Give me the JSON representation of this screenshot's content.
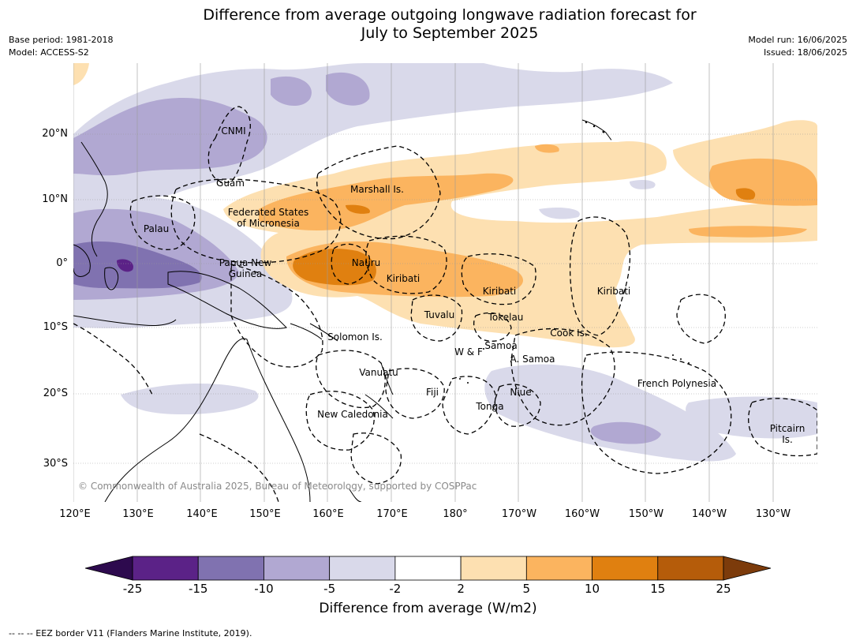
{
  "title": "Difference from average outgoing longwave radiation forecast for\nJuly to September 2025",
  "meta": {
    "base_period": "Base period: 1981-2018",
    "model": "Model: ACCESS-S2",
    "model_run": "Model run: 16/06/2025",
    "issued": "Issued: 18/06/2025"
  },
  "lat_labels": [
    "20°N",
    "10°N",
    "0°",
    "10°S",
    "20°S",
    "30°S"
  ],
  "lon_labels": [
    "120°E",
    "130°E",
    "140°E",
    "150°E",
    "160°E",
    "170°E",
    "180°",
    "170°W",
    "160°W",
    "150°W",
    "140°W",
    "130°W"
  ],
  "places": [
    "CNMI",
    "Guam",
    "Marshall Is.",
    "Federated States\nof Micronesia",
    "Palau",
    "Papua New\nGuinea",
    "Nauru",
    "Kiribati",
    "Kiribati",
    "Kiribati",
    "Tuvalu",
    "Tokelau",
    "Cook Is.",
    "Solomon Is.",
    "Samoa",
    "W & F",
    "A. Samoa",
    "Vanuatu",
    "Fiji",
    "Niue",
    "Tonga",
    "French Polynesia",
    "New Caledonia",
    "Pitcairn\nIs."
  ],
  "copyright": "© Commonwealth of Australia 2025, Bureau of Meteorology, supported by COSPPac",
  "colorbar": {
    "ticks": [
      "-25",
      "-15",
      "-10",
      "-5",
      "-2",
      "2",
      "5",
      "10",
      "15",
      "25"
    ],
    "colors": [
      "#5b2287",
      "#8072b0",
      "#b1a8d2",
      "#d9d9ea",
      "#ffffff",
      "#fde0b1",
      "#fbb45f",
      "#e08010",
      "#b55c0a"
    ],
    "low_extend_color": "#2d0a4e",
    "high_extend_color": "#7c3b0b",
    "title": "Difference from average (W/m2)"
  },
  "footnote": "--  --  -- EEZ border V11 (Flanders Marine Institute, 2019)."
}
